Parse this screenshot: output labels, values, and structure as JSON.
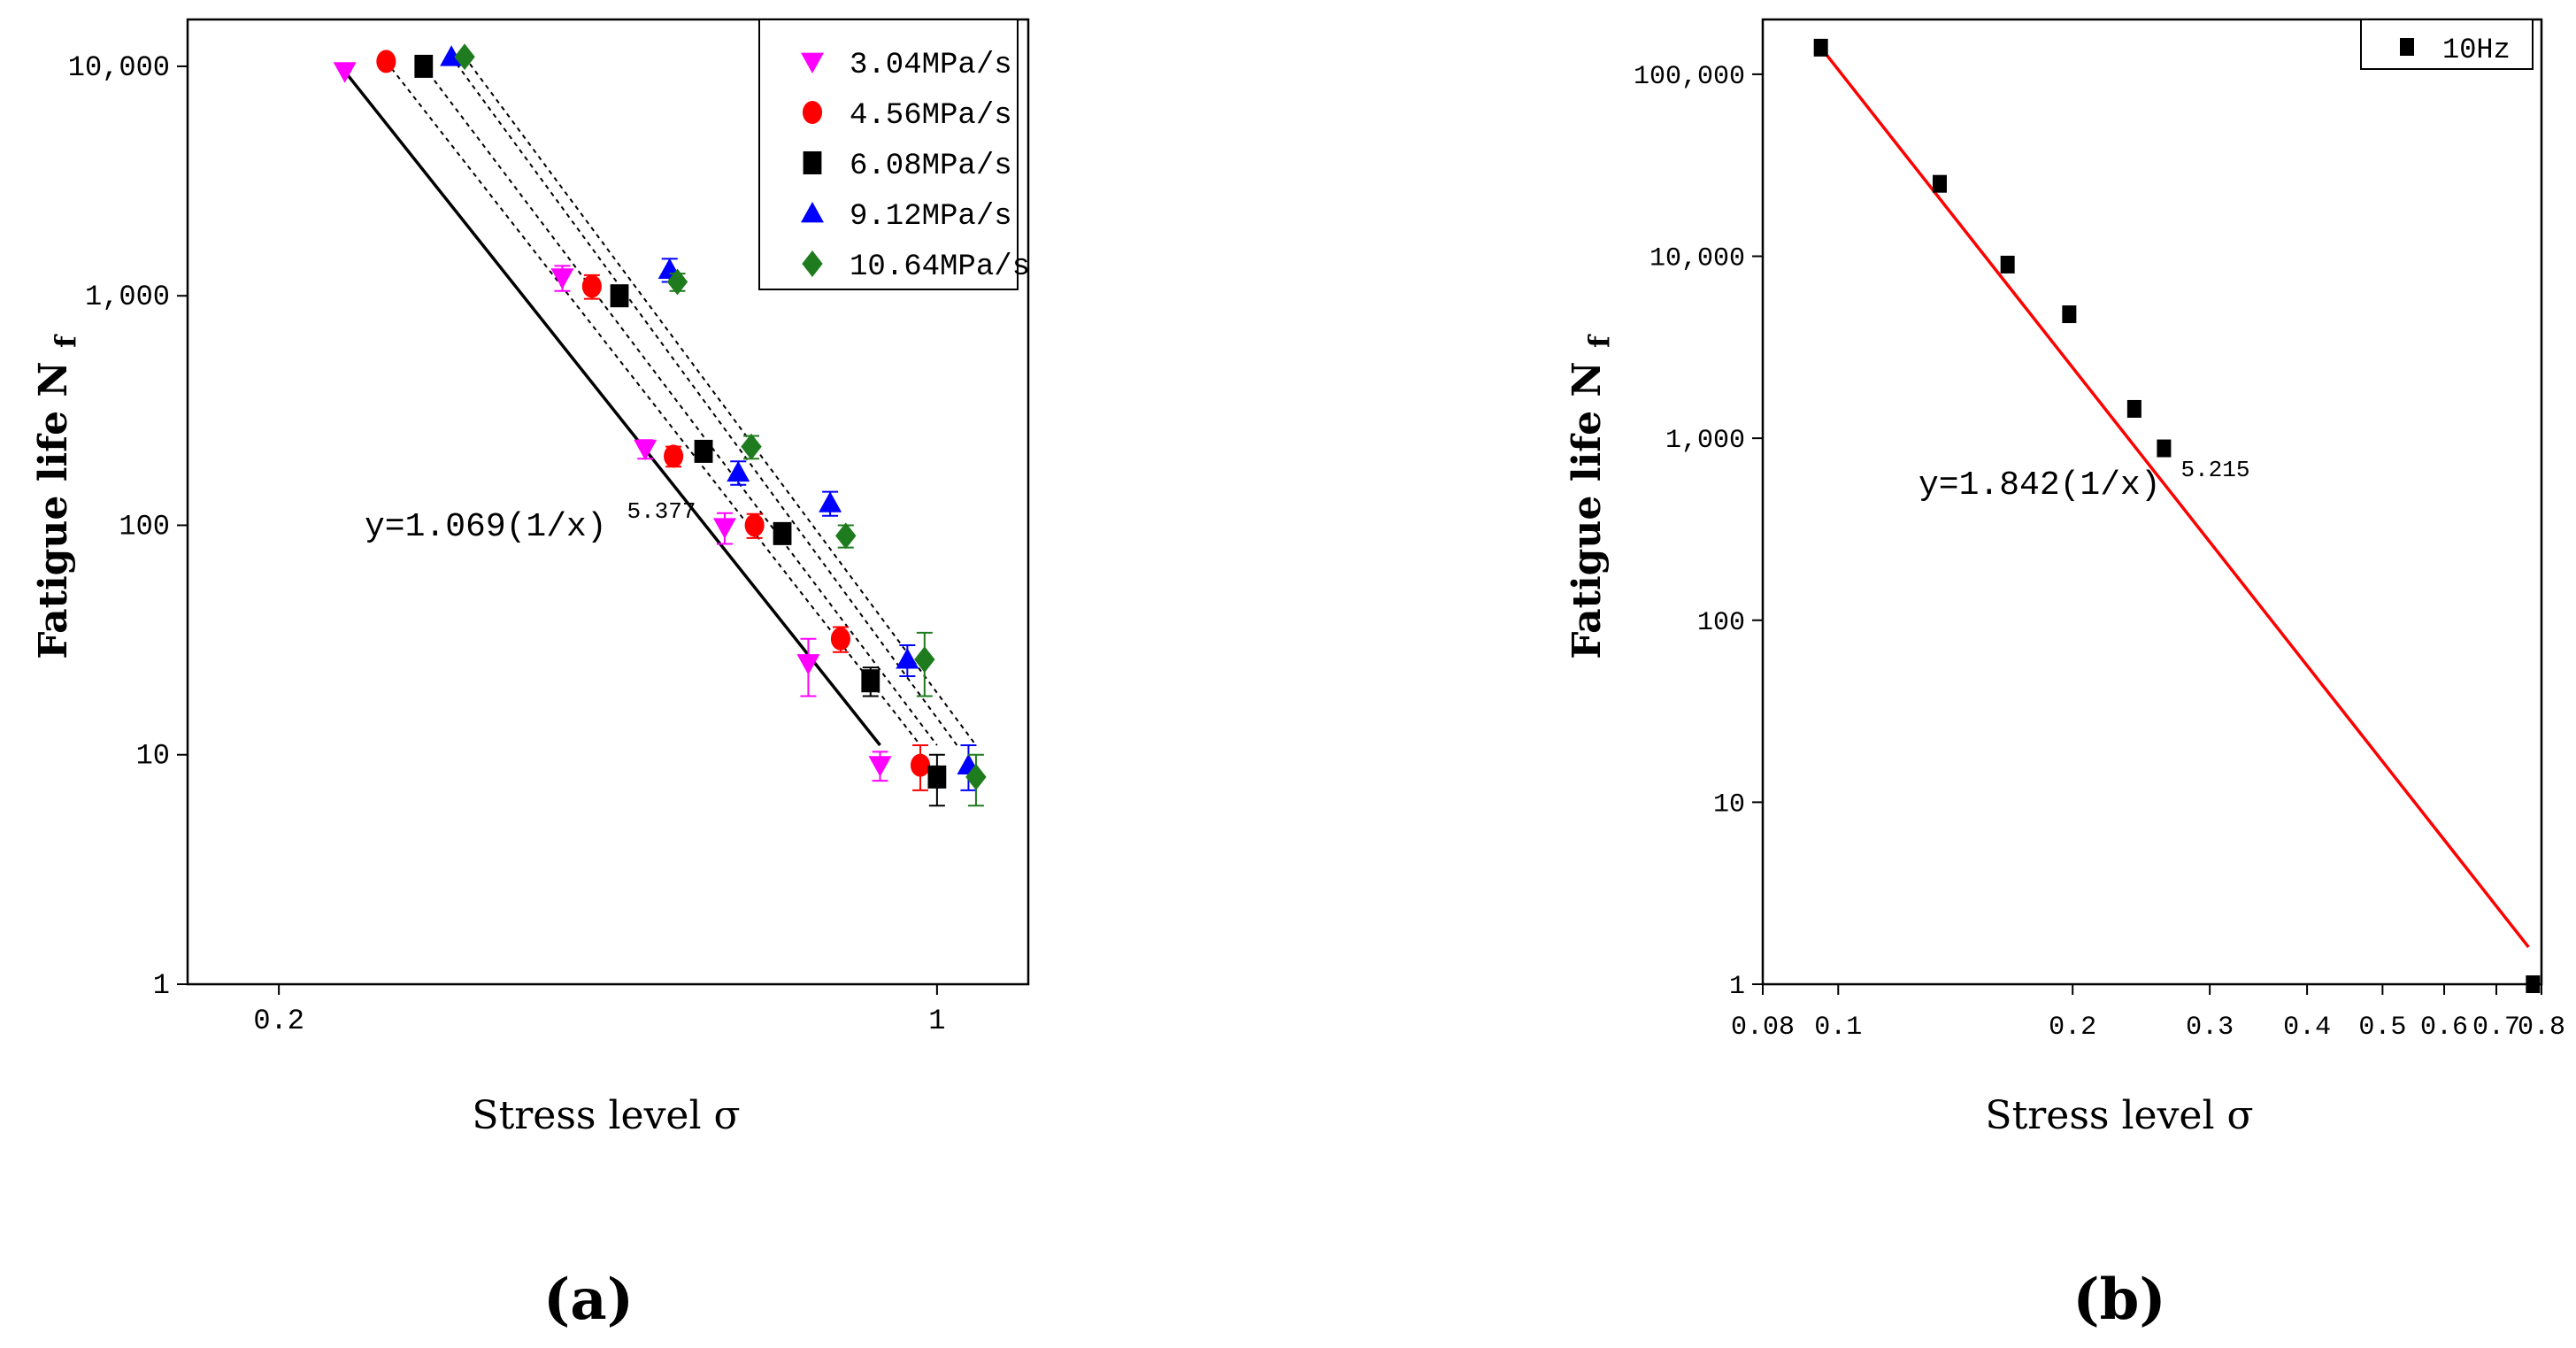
{
  "chart_data": [
    {
      "id": "a",
      "panel_label": "(a)",
      "type": "scatter",
      "xscale": "log",
      "yscale": "log",
      "xlim": [
        0.16,
        1.25
      ],
      "ylim": [
        1,
        16000
      ],
      "xlabel": "Stress level σ",
      "ylabel": {
        "main": "Fatigue life N",
        "sub": "f"
      },
      "xticks": [
        {
          "v": 0.2,
          "label": "0.2"
        },
        {
          "v": 1,
          "label": "1"
        }
      ],
      "yticks": [
        {
          "v": 1,
          "label": "1"
        },
        {
          "v": 10,
          "label": "10"
        },
        {
          "v": 100,
          "label": "100"
        },
        {
          "v": 1000,
          "label": "1,000"
        },
        {
          "v": 10000,
          "label": "10,000"
        }
      ],
      "legend": "top-right",
      "series": [
        {
          "name": "3.04MPa/s",
          "marker": "triangle-down",
          "color": "#ff00ff",
          "errcolor": "#ff00ff",
          "points": [
            [
              0.235,
              9500,
              0
            ],
            [
              0.4,
              1200,
              150
            ],
            [
              0.49,
              215,
              20
            ],
            [
              0.595,
              98,
              15
            ],
            [
              0.73,
              25,
              7
            ],
            [
              0.87,
              9,
              1.3
            ]
          ]
        },
        {
          "name": "4.56MPa/s",
          "marker": "circle",
          "color": "#ff0000",
          "errcolor": "#ff0000",
          "points": [
            [
              0.26,
              10500,
              0
            ],
            [
              0.43,
              1100,
              130
            ],
            [
              0.525,
              200,
              20
            ],
            [
              0.64,
              100,
              12
            ],
            [
              0.79,
              32,
              4
            ],
            [
              0.96,
              9,
              2
            ]
          ]
        },
        {
          "name": "6.08MPa/s",
          "marker": "square",
          "color": "#000000",
          "errcolor": "#000000",
          "points": [
            [
              0.285,
              10000,
              0
            ],
            [
              0.46,
              1000,
              80
            ],
            [
              0.565,
              210,
              20
            ],
            [
              0.685,
              92,
              8
            ],
            [
              0.85,
              21,
              3
            ],
            [
              1.0,
              8,
              2
            ]
          ]
        },
        {
          "name": "9.12MPa/s",
          "marker": "triangle-up",
          "color": "#0000ff",
          "errcolor": "#0000ff",
          "points": [
            [
              0.305,
              11000,
              0
            ],
            [
              0.52,
              1300,
              150
            ],
            [
              0.615,
              170,
              20
            ],
            [
              0.77,
              125,
              15
            ],
            [
              0.93,
              26,
              4
            ],
            [
              1.08,
              9,
              2
            ]
          ]
        },
        {
          "name": "10.64MPa/s",
          "marker": "diamond",
          "color": "#1e7b1e",
          "errcolor": "#1e7b1e",
          "points": [
            [
              0.315,
              11000,
              0
            ],
            [
              0.53,
              1150,
              100
            ],
            [
              0.635,
              220,
              25
            ],
            [
              0.8,
              90,
              10
            ],
            [
              0.97,
              26,
              8
            ],
            [
              1.1,
              8,
              2
            ]
          ]
        }
      ],
      "fit_line": {
        "from": [
          0.235,
          9500
        ],
        "to": [
          0.87,
          11
        ],
        "color": "#000000"
      },
      "dashed_lines": [
        {
          "from": [
            0.26,
            10500
          ],
          "to": [
            0.96,
            11
          ]
        },
        {
          "from": [
            0.285,
            10000
          ],
          "to": [
            1.0,
            11
          ]
        },
        {
          "from": [
            0.305,
            11000
          ],
          "to": [
            1.05,
            11
          ]
        },
        {
          "from": [
            0.315,
            11000
          ],
          "to": [
            1.1,
            11
          ]
        }
      ],
      "annotation": {
        "text": "y=1.069(1/x)",
        "sup": "5.377"
      }
    },
    {
      "id": "b",
      "panel_label": "(b)",
      "type": "scatter",
      "xscale": "log",
      "yscale": "log",
      "xlim": [
        0.08,
        0.8
      ],
      "ylim": [
        1,
        200000
      ],
      "xlabel": "Stress level  σ",
      "ylabel": {
        "main": "Fatigue life N",
        "sub": "f"
      },
      "xticks": [
        {
          "v": 0.08,
          "label": "0.08"
        },
        {
          "v": 0.1,
          "label": "0.1"
        },
        {
          "v": 0.2,
          "label": "0.2"
        },
        {
          "v": 0.3,
          "label": "0.3"
        },
        {
          "v": 0.4,
          "label": "0.4"
        },
        {
          "v": 0.5,
          "label": "0.5"
        },
        {
          "v": 0.6,
          "label": "0.6"
        },
        {
          "v": 0.7,
          "label": "0.7"
        },
        {
          "v": 0.8,
          "label": "0.8"
        }
      ],
      "yticks": [
        {
          "v": 1,
          "label": "1"
        },
        {
          "v": 10,
          "label": "10"
        },
        {
          "v": 100,
          "label": "100"
        },
        {
          "v": 1000,
          "label": "1,000"
        },
        {
          "v": 10000,
          "label": "10,000"
        },
        {
          "v": 100000,
          "label": "100,000"
        }
      ],
      "legend": "top-right",
      "series": [
        {
          "name": "10Hz",
          "marker": "square",
          "color": "#000000",
          "points": [
            [
              0.095,
              140000
            ],
            [
              0.135,
              25000
            ],
            [
              0.165,
              9000
            ],
            [
              0.198,
              4800
            ],
            [
              0.24,
              1450
            ],
            [
              0.262,
              880
            ],
            [
              0.78,
              1
            ]
          ]
        }
      ],
      "fit_line": {
        "from": [
          0.095,
          140000
        ],
        "to": [
          0.77,
          1.6
        ],
        "color": "#ff0000"
      },
      "annotation": {
        "text": "y=1.842(1/x)",
        "sup": "5.215"
      }
    }
  ]
}
